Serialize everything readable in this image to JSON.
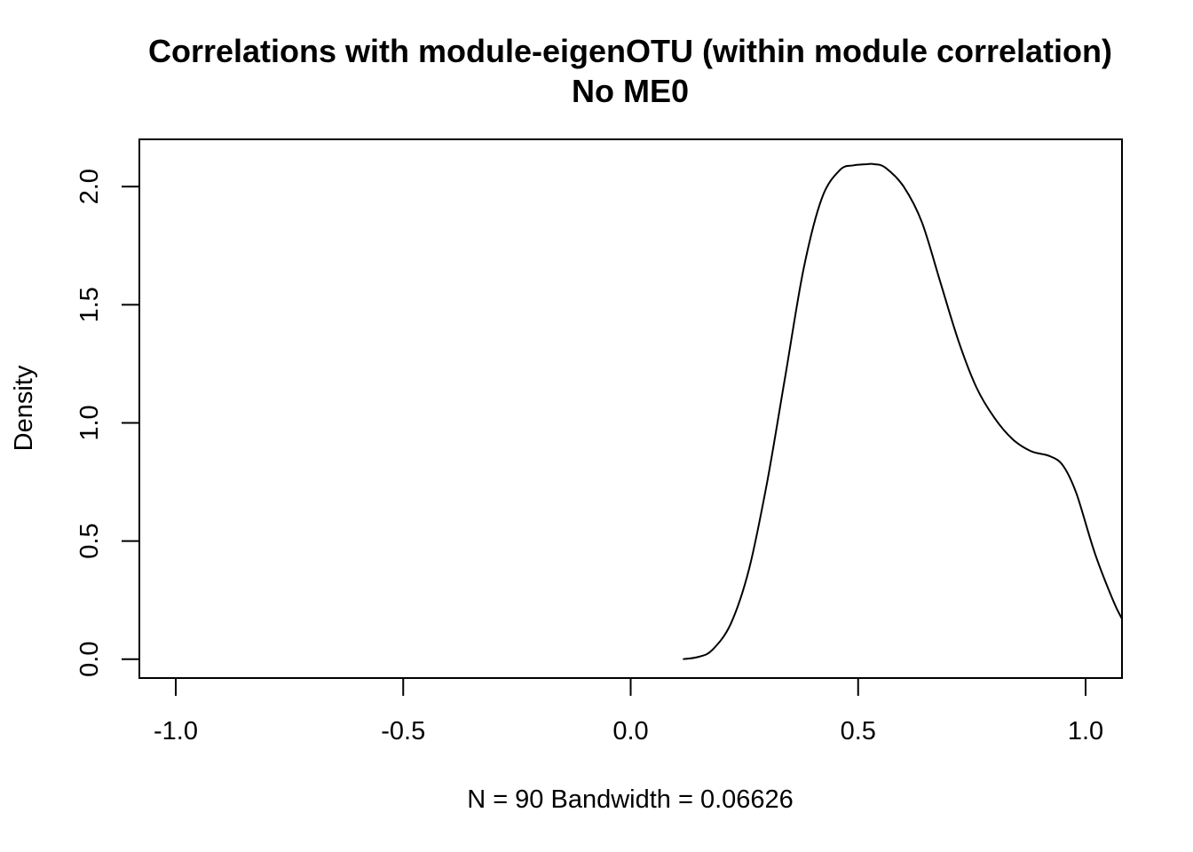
{
  "chart_data": {
    "type": "line",
    "title": "Correlations with module-eigenOTU (within module correlation)",
    "subtitle": "No ME0",
    "xlabel": "N = 90   Bandwidth = 0.06626",
    "ylabel": "Density",
    "xlim": [
      -1.08,
      1.08
    ],
    "ylim": [
      -0.08,
      2.2
    ],
    "x_ticks": [
      -1.0,
      -0.5,
      0.0,
      0.5,
      1.0
    ],
    "x_tick_labels": [
      "-1.0",
      "-0.5",
      "0.0",
      "0.5",
      "1.0"
    ],
    "y_ticks": [
      0.0,
      0.5,
      1.0,
      1.5,
      2.0
    ],
    "y_tick_labels": [
      "0.0",
      "0.5",
      "1.0",
      "1.5",
      "2.0"
    ],
    "grid": false,
    "series": [
      {
        "x": [
          0.115,
          0.15,
          0.18,
          0.22,
          0.26,
          0.3,
          0.34,
          0.38,
          0.42,
          0.46,
          0.49,
          0.52,
          0.535,
          0.56,
          0.6,
          0.64,
          0.68,
          0.72,
          0.76,
          0.8,
          0.84,
          0.88,
          0.92,
          0.95,
          0.98,
          1.02,
          1.06,
          1.08
        ],
        "y": [
          0.0,
          0.01,
          0.04,
          0.15,
          0.38,
          0.75,
          1.2,
          1.65,
          1.95,
          2.07,
          2.09,
          2.095,
          2.095,
          2.08,
          2.0,
          1.85,
          1.6,
          1.35,
          1.15,
          1.02,
          0.93,
          0.88,
          0.86,
          0.82,
          0.7,
          0.45,
          0.25,
          0.17
        ]
      }
    ]
  }
}
